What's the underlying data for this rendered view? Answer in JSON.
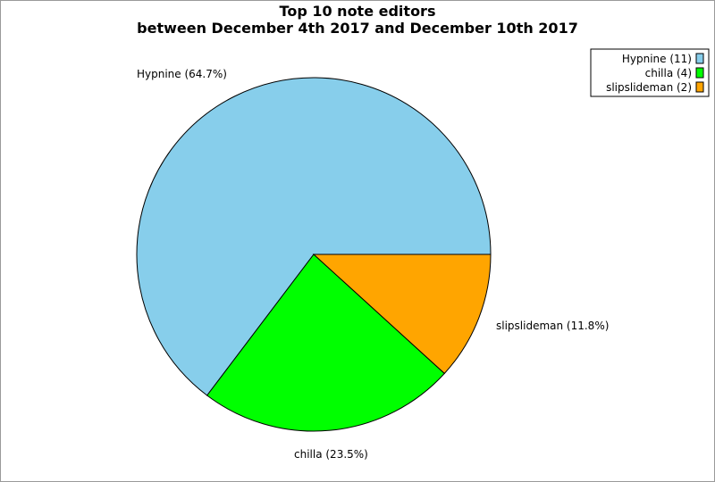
{
  "chart_data": {
    "type": "pie",
    "title": "Top 10 note editors",
    "subtitle": "between December 4th 2017 and December 10th 2017",
    "slices": [
      {
        "name": "Hypnine",
        "value": 11,
        "percent": 64.7,
        "color": "#87CEEB",
        "slice_label": "Hypnine (64.7%)",
        "legend_label": "Hypnine (11)"
      },
      {
        "name": "chilla",
        "value": 4,
        "percent": 23.5,
        "color": "#00FF00",
        "slice_label": "chilla (23.5%)",
        "legend_label": "chilla (4)"
      },
      {
        "name": "slipslideman",
        "value": 2,
        "percent": 11.8,
        "color": "#FFA500",
        "slice_label": "slipslideman (11.8%)",
        "legend_label": "slipslideman (2)"
      }
    ],
    "legend_position": "top-right"
  }
}
